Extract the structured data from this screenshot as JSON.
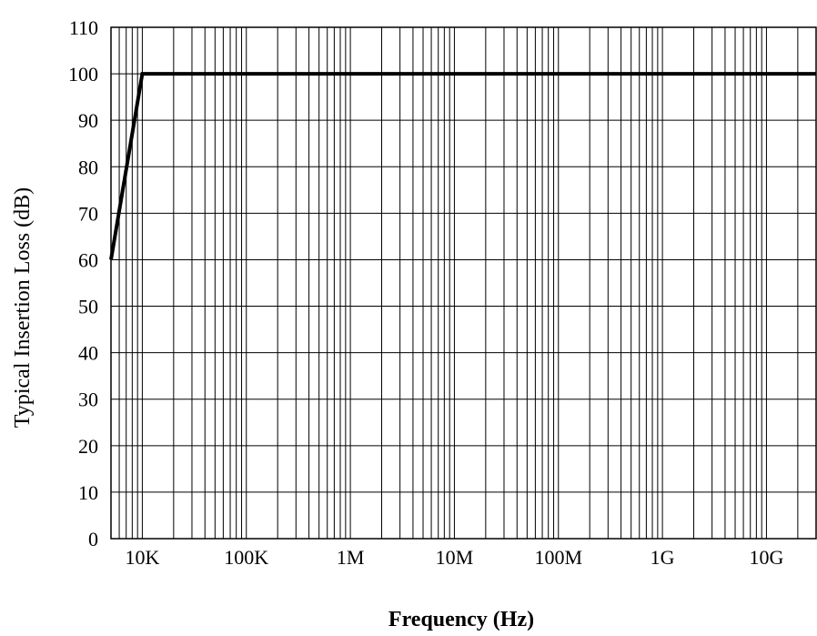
{
  "chart_data": {
    "type": "line",
    "xlabel": "Frequency (Hz)",
    "ylabel": "Typical Insertion Loss (dB)",
    "x_scale": "log",
    "xlim": [
      5000,
      30000000000
    ],
    "ylim": [
      0,
      110
    ],
    "grid": true,
    "x_ticks": [
      {
        "value": 10000,
        "label": "10K"
      },
      {
        "value": 100000,
        "label": "100K"
      },
      {
        "value": 1000000,
        "label": "1M"
      },
      {
        "value": 10000000,
        "label": "10M"
      },
      {
        "value": 100000000,
        "label": "100M"
      },
      {
        "value": 1000000000,
        "label": "1G"
      },
      {
        "value": 10000000000,
        "label": "10G"
      }
    ],
    "y_ticks": [
      {
        "value": 0,
        "label": "0"
      },
      {
        "value": 10,
        "label": "10"
      },
      {
        "value": 20,
        "label": "20"
      },
      {
        "value": 30,
        "label": "30"
      },
      {
        "value": 40,
        "label": "40"
      },
      {
        "value": 50,
        "label": "50"
      },
      {
        "value": 60,
        "label": "60"
      },
      {
        "value": 70,
        "label": "70"
      },
      {
        "value": 80,
        "label": "80"
      },
      {
        "value": 90,
        "label": "90"
      },
      {
        "value": 100,
        "label": "100"
      },
      {
        "value": 110,
        "label": "110"
      }
    ],
    "series": [
      {
        "color": "#000000",
        "x": [
          5000,
          10000,
          30000000000
        ],
        "y": [
          60,
          100,
          100
        ]
      }
    ]
  }
}
